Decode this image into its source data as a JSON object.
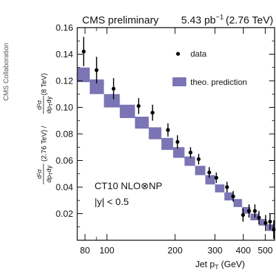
{
  "side_credit": "CMS Collaboration",
  "header": {
    "left": "CMS  preliminary",
    "lumi_value": "5.43 pb",
    "lumi_exp": "−1",
    "lumi_energy": "(2.76 TeV)"
  },
  "legend": {
    "data_label": "data",
    "theory_label": "theo. prediction"
  },
  "annotation": {
    "line1": "CT10 NLO⊗NP",
    "line2": "|y| < 0.5"
  },
  "xaxis": {
    "label_main": "Jet p",
    "label_sub": "T",
    "label_unit": " (GeV)",
    "scale": "log",
    "range": [
      74,
      550
    ],
    "major_ticks": [
      {
        "v": 80,
        "l": "80"
      },
      {
        "v": 100,
        "l": "100"
      },
      {
        "v": 200,
        "l": "200"
      },
      {
        "v": 300,
        "l": "300"
      },
      {
        "v": 400,
        "l": "400"
      },
      {
        "v": 500,
        "l": "500"
      }
    ],
    "minor_ticks": [
      90,
      600
    ]
  },
  "yaxis": {
    "range": [
      0.0,
      0.16
    ],
    "major_ticks": [
      {
        "v": 0.02,
        "l": "0.02"
      },
      {
        "v": 0.04,
        "l": "0.04"
      },
      {
        "v": 0.06,
        "l": "0.06"
      },
      {
        "v": 0.08,
        "l": "0.08"
      },
      {
        "v": 0.1,
        "l": "0.10"
      },
      {
        "v": 0.12,
        "l": "0.12"
      },
      {
        "v": 0.14,
        "l": "0.14"
      },
      {
        "v": 0.16,
        "l": "0.16"
      }
    ],
    "label": {
      "frac1_num": "d²σ",
      "frac1_den": "dp",
      "den_sub": "T",
      "den_tail": "dy",
      "middle": "(2.76 TeV) / ",
      "frac2_num": "d²σ",
      "frac2_den": "dp",
      "end": " (8 TeV)"
    }
  },
  "chart_data": {
    "type": "scatter",
    "x_scale": "log",
    "xlim": [
      74,
      550
    ],
    "ylim": [
      0.0,
      0.16
    ],
    "grid": false,
    "legend_position": "top-right",
    "colors": {
      "data": "#000000",
      "theory": "#7b75b5",
      "axes": "#000000"
    },
    "series": [
      {
        "name": "data",
        "points": [
          {
            "x": 79,
            "y": 0.142,
            "err": 0.011
          },
          {
            "x": 90,
            "y": 0.128,
            "err": 0.01
          },
          {
            "x": 107,
            "y": 0.114,
            "err": 0.008
          },
          {
            "x": 138,
            "y": 0.101,
            "err": 0.006
          },
          {
            "x": 159,
            "y": 0.096,
            "err": 0.006
          },
          {
            "x": 186,
            "y": 0.083,
            "err": 0.005
          },
          {
            "x": 205,
            "y": 0.074,
            "err": 0.005
          },
          {
            "x": 234,
            "y": 0.066,
            "err": 0.004
          },
          {
            "x": 254,
            "y": 0.061,
            "err": 0.004
          },
          {
            "x": 283,
            "y": 0.051,
            "err": 0.004
          },
          {
            "x": 304,
            "y": 0.047,
            "err": 0.004
          },
          {
            "x": 339,
            "y": 0.04,
            "err": 0.004
          },
          {
            "x": 361,
            "y": 0.033,
            "err": 0.004
          },
          {
            "x": 399,
            "y": 0.019,
            "err": 0.005
          },
          {
            "x": 424,
            "y": 0.022,
            "err": 0.005
          },
          {
            "x": 450,
            "y": 0.022,
            "err": 0.005
          },
          {
            "x": 469,
            "y": 0.017,
            "err": 0.005
          },
          {
            "x": 502,
            "y": 0.013,
            "err": 0.006
          },
          {
            "x": 525,
            "y": 0.014,
            "err": 0.006
          },
          {
            "x": 545,
            "y": 0.008,
            "err": 0.007
          }
        ]
      },
      {
        "name": "theo. prediction",
        "bands": [
          {
            "x0": 74,
            "x1": 84,
            "ylo": 0.119,
            "yhi": 0.13
          },
          {
            "x0": 84,
            "x1": 97,
            "ylo": 0.11,
            "yhi": 0.121
          },
          {
            "x0": 97,
            "x1": 114,
            "ylo": 0.1,
            "yhi": 0.11
          },
          {
            "x0": 114,
            "x1": 133,
            "ylo": 0.092,
            "yhi": 0.102
          },
          {
            "x0": 133,
            "x1": 153,
            "ylo": 0.084,
            "yhi": 0.093
          },
          {
            "x0": 153,
            "x1": 174,
            "ylo": 0.076,
            "yhi": 0.085
          },
          {
            "x0": 174,
            "x1": 196,
            "ylo": 0.068,
            "yhi": 0.077
          },
          {
            "x0": 196,
            "x1": 220,
            "ylo": 0.062,
            "yhi": 0.07
          },
          {
            "x0": 220,
            "x1": 245,
            "ylo": 0.056,
            "yhi": 0.063
          },
          {
            "x0": 245,
            "x1": 272,
            "ylo": 0.049,
            "yhi": 0.056
          },
          {
            "x0": 272,
            "x1": 300,
            "ylo": 0.042,
            "yhi": 0.049
          },
          {
            "x0": 300,
            "x1": 330,
            "ylo": 0.036,
            "yhi": 0.042
          },
          {
            "x0": 330,
            "x1": 362,
            "ylo": 0.03,
            "yhi": 0.036
          },
          {
            "x0": 362,
            "x1": 395,
            "ylo": 0.025,
            "yhi": 0.031
          },
          {
            "x0": 395,
            "x1": 430,
            "ylo": 0.02,
            "yhi": 0.025
          },
          {
            "x0": 430,
            "x1": 468,
            "ylo": 0.015,
            "yhi": 0.02
          },
          {
            "x0": 468,
            "x1": 507,
            "ylo": 0.011,
            "yhi": 0.016
          },
          {
            "x0": 507,
            "x1": 550,
            "ylo": 0.007,
            "yhi": 0.012
          }
        ]
      }
    ]
  }
}
